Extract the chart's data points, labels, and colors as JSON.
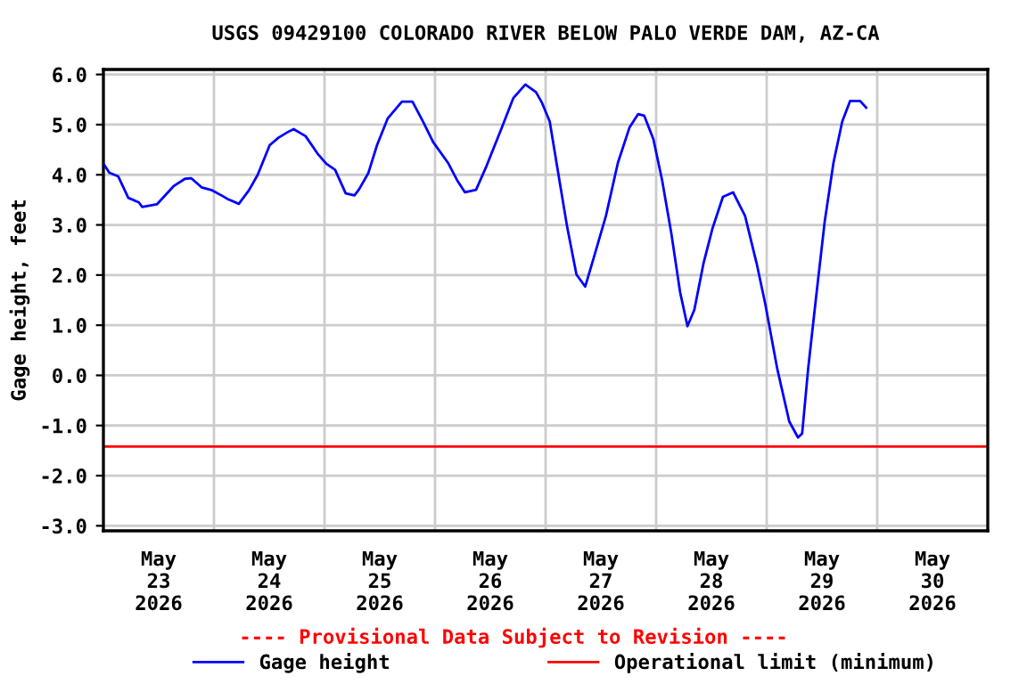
{
  "chart_data": {
    "type": "line",
    "title": "USGS 09429100 COLORADO RIVER BELOW PALO VERDE DAM, AZ-CA",
    "ylabel": "Gage height, feet",
    "annotations": [
      "---- Provisional Data Subject to Revision ----"
    ],
    "x": [
      "2026-05-23T00:00",
      "2026-05-23T01:18",
      "2026-05-23T03:12",
      "2026-05-23T05:24",
      "2026-05-23T07:42",
      "2026-05-23T08:24",
      "2026-05-23T11:36",
      "2026-05-23T13:12",
      "2026-05-23T15:12",
      "2026-05-23T17:42",
      "2026-05-23T19:06",
      "2026-05-23T21:18",
      "2026-05-23T23:36",
      "2026-05-24T01:48",
      "2026-05-24T03:06",
      "2026-05-24T05:24",
      "2026-05-24T07:36",
      "2026-05-24T09:30",
      "2026-05-24T12:06",
      "2026-05-24T14:00",
      "2026-05-24T16:00",
      "2026-05-24T17:18",
      "2026-05-24T19:54",
      "2026-05-24T22:30",
      "2026-05-25T00:24",
      "2026-05-25T02:18",
      "2026-05-25T04:36",
      "2026-05-25T06:30",
      "2026-05-25T07:30",
      "2026-05-25T09:30",
      "2026-05-25T11:24",
      "2026-05-25T13:42",
      "2026-05-25T16:48",
      "2026-05-25T19:06",
      "2026-05-25T21:24",
      "2026-05-25T23:36",
      "2026-05-26T02:48",
      "2026-05-26T04:48",
      "2026-05-26T06:30",
      "2026-05-26T08:54",
      "2026-05-26T11:12",
      "2026-05-26T14:30",
      "2026-05-26T17:00",
      "2026-05-26T19:36",
      "2026-05-26T21:54",
      "2026-05-26T23:12",
      "2026-05-27T00:54",
      "2026-05-27T02:48",
      "2026-05-27T04:42",
      "2026-05-27T06:42",
      "2026-05-27T08:36",
      "2026-05-27T10:30",
      "2026-05-27T13:06",
      "2026-05-27T15:42",
      "2026-05-27T18:12",
      "2026-05-27T20:06",
      "2026-05-27T21:24",
      "2026-05-27T23:24",
      "2026-05-28T01:18",
      "2026-05-28T03:18",
      "2026-05-28T05:12",
      "2026-05-28T06:48",
      "2026-05-28T08:18",
      "2026-05-28T10:18",
      "2026-05-28T12:12",
      "2026-05-28T14:30",
      "2026-05-28T16:42",
      "2026-05-28T19:18",
      "2026-05-28T21:48",
      "2026-05-28T23:42",
      "2026-05-29T02:18",
      "2026-05-29T04:54",
      "2026-05-29T06:48",
      "2026-05-29T07:42",
      "2026-05-29T09:00",
      "2026-05-29T10:42",
      "2026-05-29T12:36",
      "2026-05-29T14:30",
      "2026-05-29T16:24",
      "2026-05-29T18:06",
      "2026-05-29T20:18",
      "2026-05-29T21:36"
    ],
    "series": [
      {
        "name": "Gage height",
        "color": "#0000ff",
        "values": [
          4.22,
          4.04,
          3.97,
          3.54,
          3.45,
          3.36,
          3.41,
          3.57,
          3.77,
          3.92,
          3.93,
          3.75,
          3.69,
          3.58,
          3.51,
          3.42,
          3.69,
          4.0,
          4.59,
          4.74,
          4.85,
          4.91,
          4.77,
          4.42,
          4.22,
          4.1,
          3.63,
          3.59,
          3.71,
          4.03,
          4.59,
          5.12,
          5.46,
          5.46,
          5.06,
          4.65,
          4.24,
          3.89,
          3.65,
          3.7,
          4.18,
          4.94,
          5.53,
          5.8,
          5.65,
          5.44,
          5.06,
          4.0,
          2.95,
          2.01,
          1.77,
          2.36,
          3.18,
          4.24,
          4.94,
          5.21,
          5.18,
          4.71,
          3.89,
          2.83,
          1.66,
          0.98,
          1.31,
          2.24,
          2.92,
          3.56,
          3.65,
          3.18,
          2.24,
          1.42,
          0.13,
          -0.92,
          -1.24,
          -1.16,
          0.13,
          1.54,
          3.07,
          4.24,
          5.06,
          5.47,
          5.47,
          5.34
        ]
      }
    ],
    "ref_lines": [
      {
        "axis": "y",
        "value": -1.42,
        "label": "Operational limit (minimum)",
        "color": "#ff0000",
        "line_style": "solid"
      }
    ],
    "xlim": [
      "2026-05-23T00:00",
      "2026-05-31T00:00"
    ],
    "xticks": [
      {
        "value": "2026-05-23T12:00",
        "label": "May\n23\n2026"
      },
      {
        "value": "2026-05-24T12:00",
        "label": "May\n24\n2026"
      },
      {
        "value": "2026-05-25T12:00",
        "label": "May\n25\n2026"
      },
      {
        "value": "2026-05-26T12:00",
        "label": "May\n26\n2026"
      },
      {
        "value": "2026-05-27T12:00",
        "label": "May\n27\n2026"
      },
      {
        "value": "2026-05-28T12:00",
        "label": "May\n28\n2026"
      },
      {
        "value": "2026-05-29T12:00",
        "label": "May\n29\n2026"
      },
      {
        "value": "2026-05-30T12:00",
        "label": "May\n30\n2026"
      },
      {
        "value": "2026-05-24T00:00",
        "label": null
      },
      {
        "value": "2026-05-25T00:00",
        "label": null
      },
      {
        "value": "2026-05-26T00:00",
        "label": null
      },
      {
        "value": "2026-05-27T00:00",
        "label": null
      },
      {
        "value": "2026-05-28T00:00",
        "label": null
      },
      {
        "value": "2026-05-29T00:00",
        "label": null
      },
      {
        "value": "2026-05-30T00:00",
        "label": null
      }
    ],
    "ylim": [
      -3.1,
      6.1
    ],
    "yticks": [
      {
        "value": 6,
        "label": "6.0"
      },
      {
        "value": 5,
        "label": "5.0"
      },
      {
        "value": 4,
        "label": "4.0"
      },
      {
        "value": 3,
        "label": "3.0"
      },
      {
        "value": 2,
        "label": "2.0"
      },
      {
        "value": 1,
        "label": "1.0"
      },
      {
        "value": 0,
        "label": "0.0"
      },
      {
        "value": -1,
        "label": "-1.0"
      },
      {
        "value": -2,
        "label": "-2.0"
      },
      {
        "value": -3,
        "label": "-3.0"
      }
    ],
    "grid": true,
    "legend": "bottom",
    "marker": "none",
    "line_style": "solid"
  }
}
